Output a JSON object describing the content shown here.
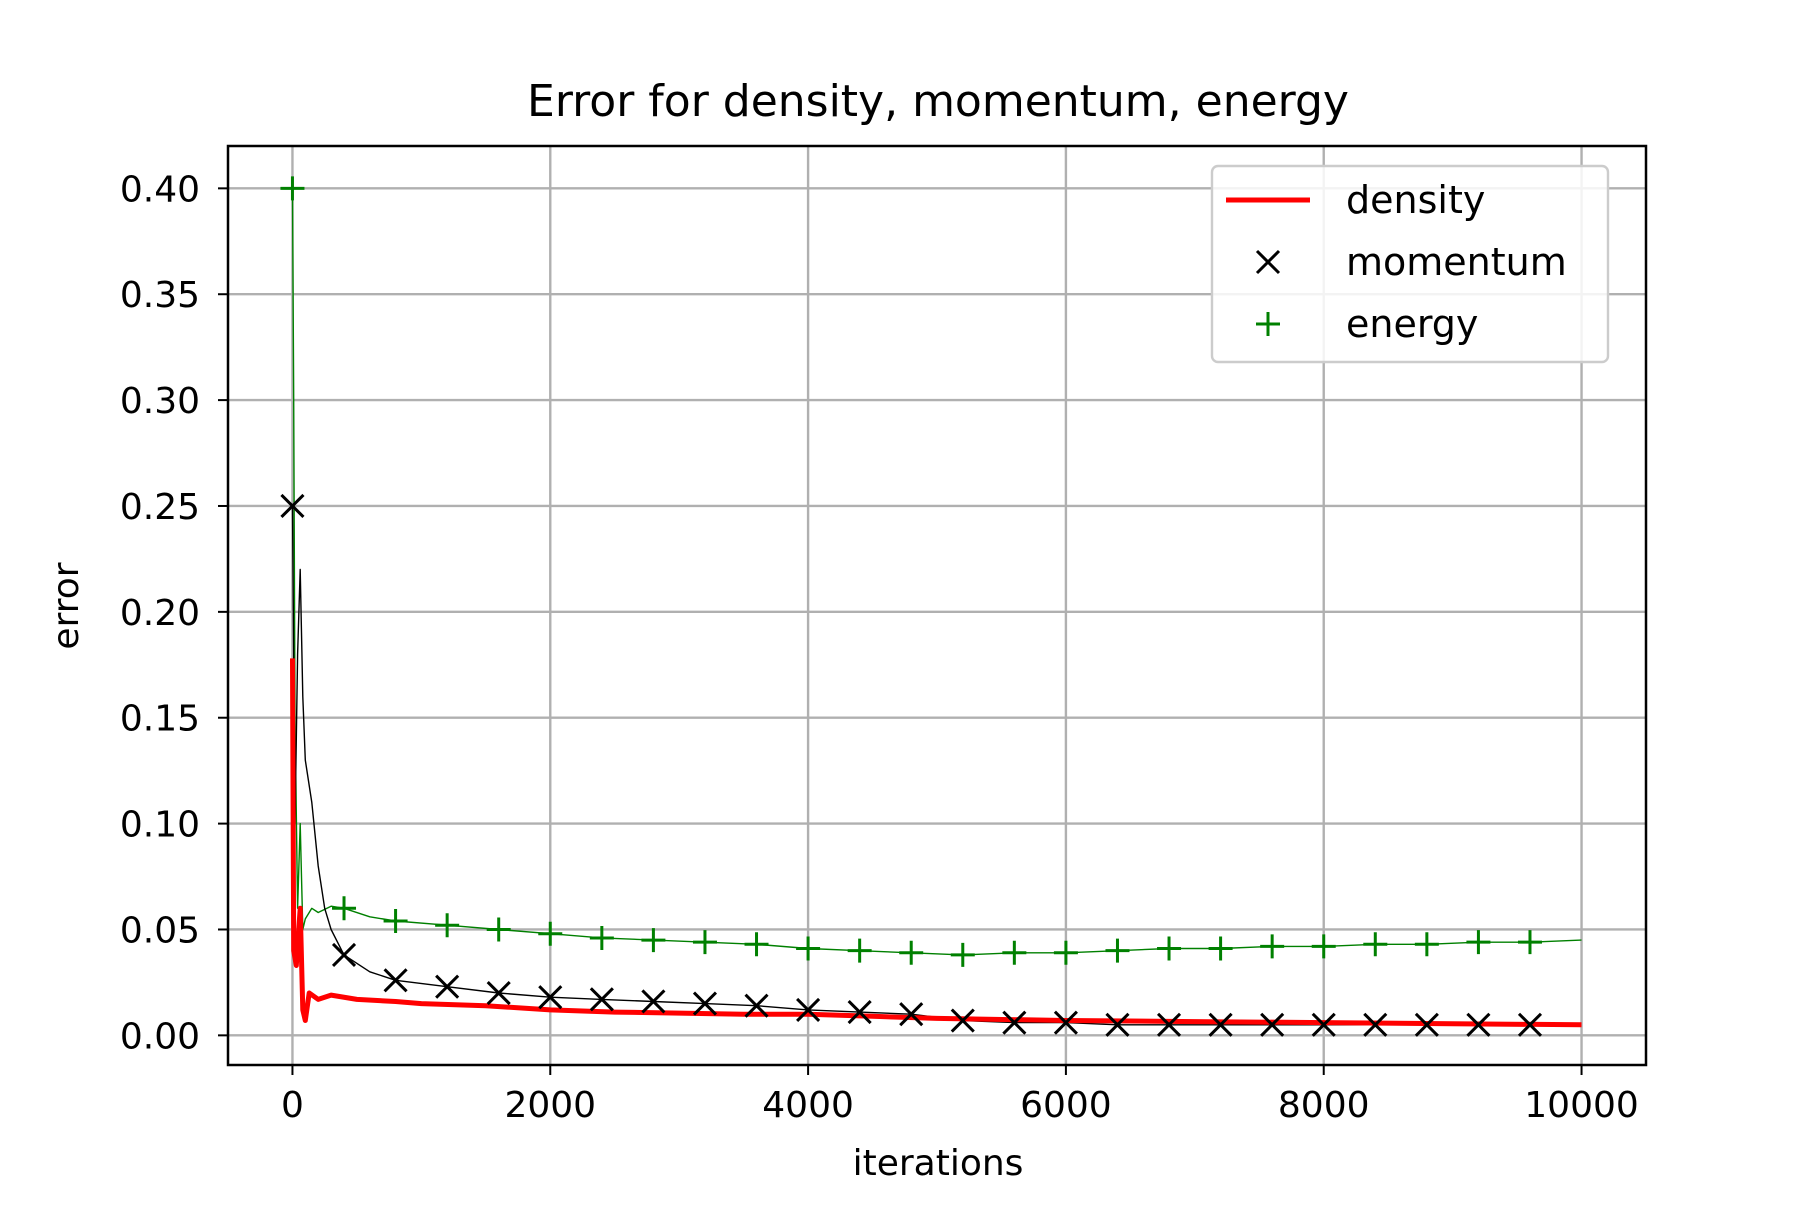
{
  "chart_data": {
    "type": "line",
    "title": "Error for density, momentum, energy",
    "xlabel": "iterations",
    "ylabel": "error",
    "xlim": [
      -500,
      10500
    ],
    "ylim": [
      -0.014,
      0.42
    ],
    "xticks": [
      0,
      2000,
      4000,
      6000,
      8000,
      10000
    ],
    "xtick_labels": [
      "0",
      "2000",
      "4000",
      "6000",
      "8000",
      "10000"
    ],
    "yticks": [
      0.0,
      0.05,
      0.1,
      0.15,
      0.2,
      0.25,
      0.3,
      0.35,
      0.4
    ],
    "ytick_labels": [
      "0.00",
      "0.05",
      "0.10",
      "0.15",
      "0.20",
      "0.25",
      "0.30",
      "0.35",
      "0.40"
    ],
    "grid": true,
    "legend_position": "top-right",
    "series": [
      {
        "name": "density",
        "color": "#ff0000",
        "style": "line",
        "points": [
          [
            0,
            0.178
          ],
          [
            10,
            0.04
          ],
          [
            30,
            0.033
          ],
          [
            60,
            0.06
          ],
          [
            80,
            0.012
          ],
          [
            100,
            0.007
          ],
          [
            130,
            0.02
          ],
          [
            200,
            0.017
          ],
          [
            300,
            0.019
          ],
          [
            500,
            0.017
          ],
          [
            800,
            0.016
          ],
          [
            1000,
            0.015
          ],
          [
            1500,
            0.014
          ],
          [
            2000,
            0.012
          ],
          [
            2500,
            0.011
          ],
          [
            3000,
            0.0105
          ],
          [
            3500,
            0.01
          ],
          [
            4000,
            0.01
          ],
          [
            4500,
            0.009
          ],
          [
            5000,
            0.008
          ],
          [
            6000,
            0.007
          ],
          [
            7000,
            0.0065
          ],
          [
            8000,
            0.006
          ],
          [
            9000,
            0.0055
          ],
          [
            10000,
            0.005
          ]
        ]
      },
      {
        "name": "momentum",
        "color": "#000000",
        "style": "line+x",
        "points": [
          [
            0,
            0.25
          ],
          [
            20,
            0.1
          ],
          [
            40,
            0.18
          ],
          [
            60,
            0.22
          ],
          [
            80,
            0.16
          ],
          [
            100,
            0.13
          ],
          [
            150,
            0.11
          ],
          [
            200,
            0.08
          ],
          [
            250,
            0.06
          ],
          [
            300,
            0.05
          ],
          [
            400,
            0.038
          ],
          [
            600,
            0.03
          ],
          [
            800,
            0.026
          ],
          [
            1200,
            0.023
          ],
          [
            1600,
            0.02
          ],
          [
            2000,
            0.018
          ],
          [
            2400,
            0.017
          ],
          [
            2800,
            0.016
          ],
          [
            3200,
            0.015
          ],
          [
            3600,
            0.014
          ],
          [
            4000,
            0.012
          ],
          [
            4400,
            0.011
          ],
          [
            4800,
            0.01
          ],
          [
            5200,
            0.007
          ],
          [
            5600,
            0.006
          ],
          [
            6000,
            0.006
          ],
          [
            6400,
            0.005
          ],
          [
            6800,
            0.005
          ],
          [
            7200,
            0.005
          ],
          [
            7600,
            0.005
          ],
          [
            8000,
            0.005
          ],
          [
            8400,
            0.005
          ],
          [
            8800,
            0.005
          ],
          [
            9200,
            0.005
          ],
          [
            9600,
            0.005
          ],
          [
            10000,
            0.005
          ]
        ],
        "markers": [
          [
            0,
            0.25
          ],
          [
            400,
            0.038
          ],
          [
            800,
            0.026
          ],
          [
            1200,
            0.023
          ],
          [
            1600,
            0.02
          ],
          [
            2000,
            0.018
          ],
          [
            2400,
            0.017
          ],
          [
            2800,
            0.016
          ],
          [
            3200,
            0.015
          ],
          [
            3600,
            0.014
          ],
          [
            4000,
            0.012
          ],
          [
            4400,
            0.011
          ],
          [
            4800,
            0.01
          ],
          [
            5200,
            0.007
          ],
          [
            5600,
            0.006
          ],
          [
            6000,
            0.006
          ],
          [
            6400,
            0.005
          ],
          [
            6800,
            0.005
          ],
          [
            7200,
            0.005
          ],
          [
            7600,
            0.005
          ],
          [
            8000,
            0.005
          ],
          [
            8400,
            0.005
          ],
          [
            8800,
            0.005
          ],
          [
            9200,
            0.005
          ],
          [
            9600,
            0.005
          ]
        ]
      },
      {
        "name": "energy",
        "color": "#008000",
        "style": "line+plus",
        "points": [
          [
            0,
            0.4
          ],
          [
            10,
            0.3
          ],
          [
            20,
            0.15
          ],
          [
            40,
            0.06
          ],
          [
            60,
            0.1
          ],
          [
            80,
            0.05
          ],
          [
            100,
            0.055
          ],
          [
            150,
            0.06
          ],
          [
            200,
            0.058
          ],
          [
            300,
            0.061
          ],
          [
            400,
            0.06
          ],
          [
            600,
            0.056
          ],
          [
            800,
            0.054
          ],
          [
            1200,
            0.052
          ],
          [
            1600,
            0.05
          ],
          [
            2000,
            0.048
          ],
          [
            2400,
            0.046
          ],
          [
            2800,
            0.045
          ],
          [
            3200,
            0.044
          ],
          [
            3600,
            0.043
          ],
          [
            4000,
            0.041
          ],
          [
            4400,
            0.04
          ],
          [
            4800,
            0.039
          ],
          [
            5200,
            0.038
          ],
          [
            5600,
            0.039
          ],
          [
            6000,
            0.039
          ],
          [
            6400,
            0.04
          ],
          [
            6800,
            0.041
          ],
          [
            7200,
            0.041
          ],
          [
            7600,
            0.042
          ],
          [
            8000,
            0.042
          ],
          [
            8400,
            0.043
          ],
          [
            8800,
            0.043
          ],
          [
            9200,
            0.044
          ],
          [
            9600,
            0.044
          ],
          [
            10000,
            0.045
          ]
        ],
        "markers": [
          [
            0,
            0.4
          ],
          [
            400,
            0.06
          ],
          [
            800,
            0.054
          ],
          [
            1200,
            0.052
          ],
          [
            1600,
            0.05
          ],
          [
            2000,
            0.048
          ],
          [
            2400,
            0.046
          ],
          [
            2800,
            0.045
          ],
          [
            3200,
            0.044
          ],
          [
            3600,
            0.043
          ],
          [
            4000,
            0.041
          ],
          [
            4400,
            0.04
          ],
          [
            4800,
            0.039
          ],
          [
            5200,
            0.038
          ],
          [
            5600,
            0.039
          ],
          [
            6000,
            0.039
          ],
          [
            6400,
            0.04
          ],
          [
            6800,
            0.041
          ],
          [
            7200,
            0.041
          ],
          [
            7600,
            0.042
          ],
          [
            8000,
            0.042
          ],
          [
            8400,
            0.043
          ],
          [
            8800,
            0.043
          ],
          [
            9200,
            0.044
          ],
          [
            9600,
            0.044
          ]
        ]
      }
    ]
  }
}
